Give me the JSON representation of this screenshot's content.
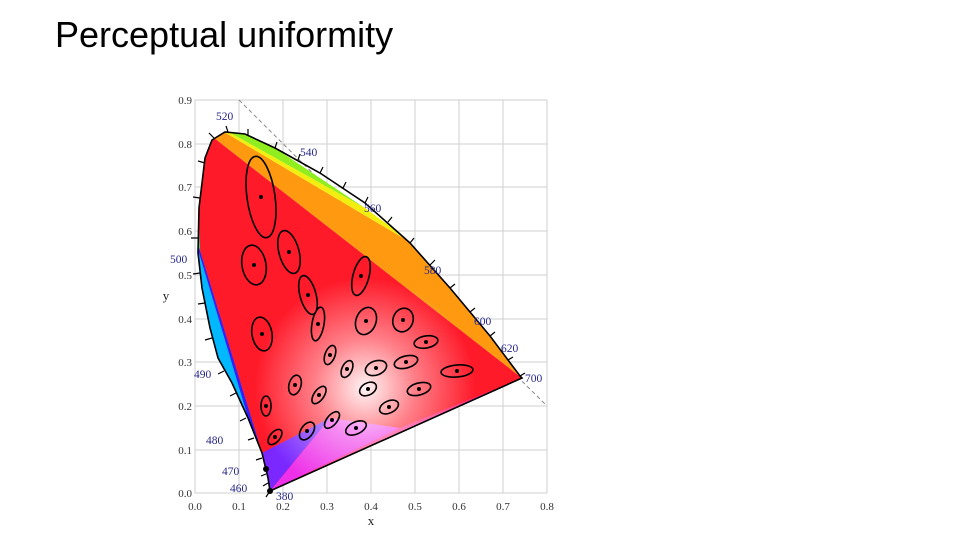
{
  "slide": {
    "title": "Perceptual uniformity"
  },
  "diagram": {
    "x_label": "x",
    "y_label": "y",
    "x_ticks": [
      "0.0",
      "0.1",
      "0.2",
      "0.3",
      "0.4",
      "0.5",
      "0.6",
      "0.7",
      "0.8"
    ],
    "y_ticks": [
      "0.0",
      "0.1",
      "0.2",
      "0.3",
      "0.4",
      "0.5",
      "0.6",
      "0.7",
      "0.8",
      "0.9"
    ],
    "wavelength_labels": [
      "380",
      "460",
      "470",
      "480",
      "490",
      "500",
      "520",
      "540",
      "560",
      "580",
      "600",
      "620",
      "700"
    ]
  }
}
